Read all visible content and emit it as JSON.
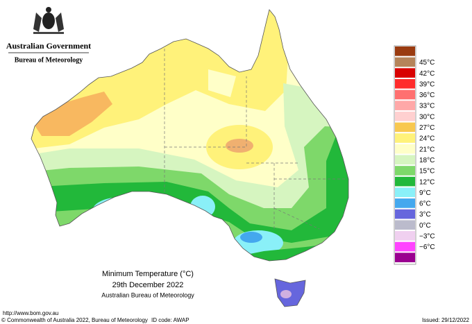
{
  "header": {
    "government": "Australian Government",
    "agency": "Bureau of Meteorology"
  },
  "legend": {
    "labels": [
      "45°C",
      "42°C",
      "39°C",
      "36°C",
      "33°C",
      "30°C",
      "27°C",
      "24°C",
      "21°C",
      "18°C",
      "15°C",
      "12°C",
      "9°C",
      "6°C",
      "3°C",
      "0°C",
      "−3°C",
      "−6°C"
    ],
    "colors": [
      "#9a3b10",
      "#b5845a",
      "#d80000",
      "#ff2b2b",
      "#ff7070",
      "#ffa8a8",
      "#ffd0d0",
      "#f8c850",
      "#fff27a",
      "#ffffc8",
      "#d6f5c0",
      "#7ed86a",
      "#22b83a",
      "#8af0f8",
      "#44a8ee",
      "#6666dd",
      "#bbbbcc",
      "#f0d0f0",
      "#ff44ff",
      "#9a0090"
    ]
  },
  "caption": {
    "title": "Minimum Temperature (°C)",
    "date": "29th December 2022",
    "source": "Australian Bureau of Meteorology"
  },
  "footer": {
    "url": "http://www.bom.gov.au",
    "copyright": "© Commonwealth of Australia 2022, Bureau of Meteorology",
    "id_code": "ID code: AWAP",
    "issued": "Issued: 29/12/2022"
  }
}
